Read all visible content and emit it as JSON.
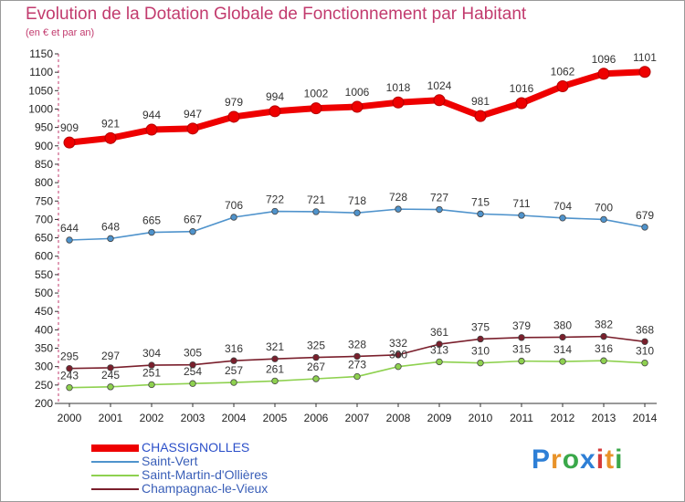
{
  "header": {
    "title": "Evolution de la Dotation Globale de Fonctionnement par Habitant",
    "subtitle": "(en € et par an)"
  },
  "chart_data": {
    "type": "line",
    "x": [
      "2000",
      "2001",
      "2002",
      "2003",
      "2004",
      "2005",
      "2006",
      "2007",
      "2008",
      "2009",
      "2010",
      "2011",
      "2012",
      "2013",
      "2014"
    ],
    "ylim": [
      200,
      1150
    ],
    "yticks": [
      200,
      250,
      300,
      350,
      400,
      450,
      500,
      550,
      600,
      650,
      700,
      750,
      800,
      850,
      900,
      950,
      1000,
      1050,
      1100,
      1150
    ],
    "grid": false,
    "legend_position": "bottom-left",
    "series": [
      {
        "name": "CHASSIGNOLLES",
        "color": "#ee0000",
        "values": [
          909,
          921,
          944,
          947,
          979,
          994,
          1002,
          1006,
          1018,
          1024,
          981,
          1016,
          1062,
          1096,
          1101
        ]
      },
      {
        "name": "Saint-Vert",
        "color": "#4f93cc",
        "values": [
          644,
          648,
          665,
          667,
          706,
          722,
          721,
          718,
          728,
          727,
          715,
          711,
          704,
          700,
          679
        ]
      },
      {
        "name": "Saint-Martin-d'Ollières",
        "color": "#8ed14f",
        "values": [
          243,
          245,
          251,
          254,
          257,
          261,
          267,
          273,
          300,
          313,
          310,
          315,
          314,
          316,
          310
        ]
      },
      {
        "name": "Champagnac-le-Vieux",
        "color": "#7a1f2c",
        "values": [
          295,
          297,
          304,
          305,
          316,
          321,
          325,
          328,
          332,
          361,
          375,
          379,
          380,
          382,
          368
        ]
      }
    ]
  },
  "logo": {
    "letters": [
      "P",
      "r",
      "o",
      "x",
      "i",
      "t",
      "i"
    ],
    "colors": [
      "#2e7fd6",
      "#e8932a",
      "#3aa84a",
      "#2e7fd6",
      "#d63a3a",
      "#e8932a",
      "#3aa84a"
    ]
  }
}
